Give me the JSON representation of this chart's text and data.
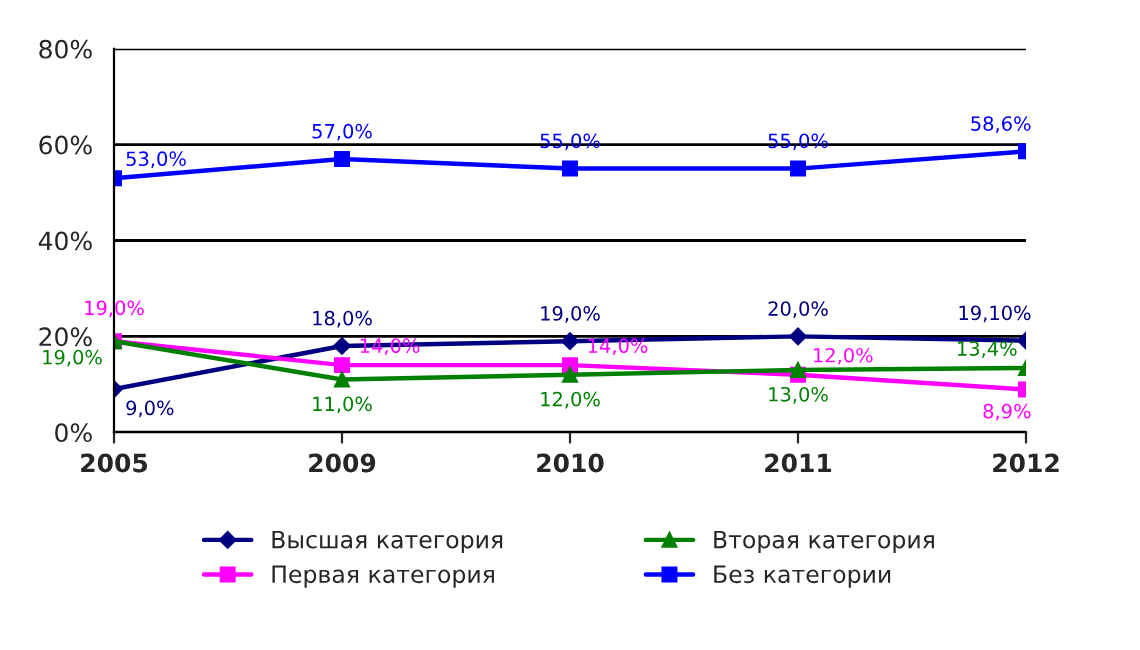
{
  "chart_data": {
    "type": "line",
    "categories": [
      "2005",
      "2009",
      "2010",
      "2011",
      "2012"
    ],
    "series": [
      {
        "name": "Высшая категория",
        "color": "#000080",
        "marker": "diamond",
        "values": [
          9.0,
          18.0,
          19.0,
          20.0,
          19.1
        ],
        "value_labels": [
          "9,0%",
          "18,0%",
          "19,0%",
          "20,0%",
          "19,10%"
        ]
      },
      {
        "name": "Первая категория",
        "color": "#ff00ff",
        "marker": "square",
        "values": [
          19.0,
          14.0,
          14.0,
          12.0,
          8.9
        ],
        "value_labels": [
          "19,0%",
          "14,0%",
          "14,0%",
          "12,0%",
          "8,9%"
        ]
      },
      {
        "name": "Вторая категория",
        "color": "#008000",
        "marker": "triangle",
        "values": [
          19.0,
          11.0,
          12.0,
          13.0,
          13.4
        ],
        "value_labels": [
          "19,0%",
          "11,0%",
          "12,0%",
          "13,0%",
          "13,4%"
        ]
      },
      {
        "name": "Без категории",
        "color": "#0000ff",
        "marker": "square",
        "values": [
          53.0,
          57.0,
          55.0,
          55.0,
          58.6
        ],
        "value_labels": [
          "53,0%",
          "57,0%",
          "55,0%",
          "55,0%",
          "58,6%"
        ]
      }
    ],
    "ylim": [
      0,
      80
    ],
    "yticks": [
      {
        "value": 0,
        "label": "0%"
      },
      {
        "value": 20,
        "label": "20%"
      },
      {
        "value": 40,
        "label": "40%"
      },
      {
        "value": 60,
        "label": "60%"
      },
      {
        "value": 80,
        "label": "80%"
      }
    ],
    "grid": "y",
    "legend": "bottom",
    "line_style": "solid"
  }
}
